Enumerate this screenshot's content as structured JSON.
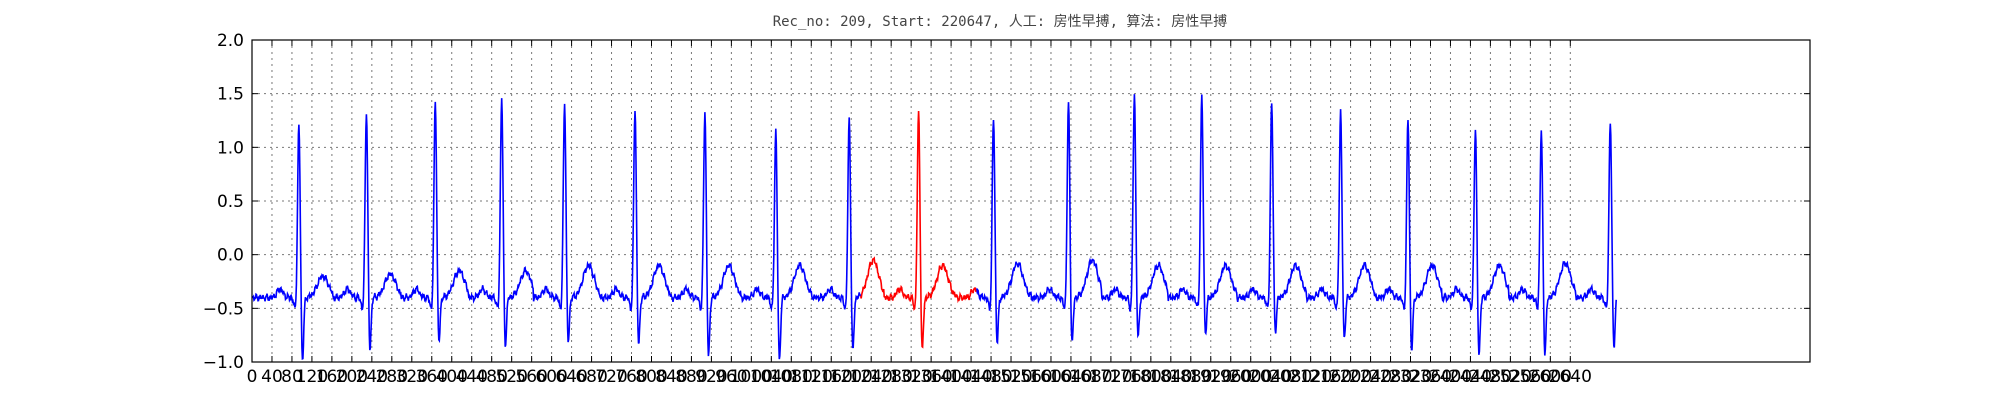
{
  "chart_data": {
    "type": "line",
    "title": "Rec_no: 209, Start: 220647, 人工: 房性早搏, 算法: 房性早搏",
    "xlabel": "",
    "ylabel": "",
    "xlim": [
      0,
      3120
    ],
    "ylim": [
      -1.0,
      2.0
    ],
    "grid": true,
    "y_ticks": [
      2.0,
      1.5,
      1.0,
      0.5,
      0.0,
      -0.5,
      -1.0
    ],
    "y_tick_labels": [
      "2.0",
      "1.5",
      "1.0",
      "0.5",
      "0.0",
      "−0.5",
      "−1.0"
    ],
    "x_ticks": [
      0,
      40,
      80,
      120,
      160,
      200,
      240,
      280,
      320,
      360,
      400,
      440,
      480,
      520,
      560,
      600,
      640,
      680,
      720,
      760,
      800,
      840,
      880,
      920,
      960,
      1000,
      1040,
      1080,
      1120,
      1160,
      1200,
      1240,
      1280,
      1320,
      1360,
      1400,
      1440,
      1480,
      1520,
      1560,
      1600,
      1640,
      1680,
      1720,
      1760,
      1800,
      1840,
      1880,
      1920,
      1960,
      2000,
      2040,
      2080,
      2120,
      2160,
      2200,
      2240,
      2280,
      2320,
      2360,
      2400,
      2440,
      2480,
      2520,
      2560,
      2600,
      2640
    ],
    "x_tick_labels": [
      "0",
      "40",
      "80",
      "120",
      "160",
      "200",
      "240",
      "280",
      "320",
      "360",
      "400",
      "440",
      "480",
      "520",
      "560",
      "600",
      "640",
      "680",
      "720",
      "760",
      "800",
      "840",
      "880",
      "920",
      "960",
      "1000",
      "1040",
      "1080",
      "1120",
      "1160",
      "1200",
      "1240",
      "1280",
      "1320",
      "1360",
      "1400",
      "1440",
      "1480",
      "1520",
      "1560",
      "1600",
      "1640",
      "1680",
      "1720",
      "1760",
      "1800",
      "1840",
      "1880",
      "1920",
      "1960",
      "2000",
      "2040",
      "2080",
      "2120",
      "2160",
      "2200",
      "2240",
      "2280",
      "2320",
      "2360",
      "2400",
      "2440",
      "2480",
      "2520",
      "2560",
      "2600",
      "2640"
    ],
    "series": [
      {
        "color": "#0000ff",
        "baseline": -0.4,
        "beats": [
          {
            "r_x": 94,
            "r_peak": 1.22,
            "s_min": -1.02,
            "t_amp": 0.2
          },
          {
            "r_x": 229,
            "r_peak": 1.35,
            "s_min": -0.92,
            "t_amp": 0.22
          },
          {
            "r_x": 367,
            "r_peak": 1.45,
            "s_min": -0.85,
            "t_amp": 0.25
          },
          {
            "r_x": 500,
            "r_peak": 1.48,
            "s_min": -0.88,
            "t_amp": 0.25
          },
          {
            "r_x": 626,
            "r_peak": 1.43,
            "s_min": -0.85,
            "t_amp": 0.3
          },
          {
            "r_x": 767,
            "r_peak": 1.38,
            "s_min": -0.87,
            "t_amp": 0.3
          },
          {
            "r_x": 907,
            "r_peak": 1.35,
            "s_min": -0.98,
            "t_amp": 0.3
          },
          {
            "r_x": 1049,
            "r_peak": 1.17,
            "s_min": -1.02,
            "t_amp": 0.3
          },
          {
            "r_x": 1196,
            "r_peak": 1.28,
            "s_min": -0.93,
            "t_amp": 0.35
          },
          {
            "r_x": 1485,
            "r_peak": 1.29,
            "s_min": -0.85,
            "t_amp": 0.32
          },
          {
            "r_x": 1635,
            "r_peak": 1.42,
            "s_min": -0.86,
            "t_amp": 0.35
          },
          {
            "r_x": 1767,
            "r_peak": 1.5,
            "s_min": -0.82,
            "t_amp": 0.3
          },
          {
            "r_x": 1902,
            "r_peak": 1.49,
            "s_min": -0.77,
            "t_amp": 0.3
          },
          {
            "r_x": 2042,
            "r_peak": 1.43,
            "s_min": -0.75,
            "t_amp": 0.3
          },
          {
            "r_x": 2180,
            "r_peak": 1.35,
            "s_min": -0.82,
            "t_amp": 0.3
          },
          {
            "r_x": 2315,
            "r_peak": 1.28,
            "s_min": -0.93,
            "t_amp": 0.3
          },
          {
            "r_x": 2450,
            "r_peak": 1.19,
            "s_min": -0.96,
            "t_amp": 0.3
          },
          {
            "r_x": 2582,
            "r_peak": 1.17,
            "s_min": -0.95,
            "t_amp": 0.32
          },
          {
            "r_x": 2720,
            "r_peak": 1.26,
            "s_min": -0.88,
            "t_amp": 0.32
          }
        ]
      },
      {
        "color": "#ff0000",
        "baseline": -0.38,
        "beats": [
          {
            "r_x": 1335,
            "r_peak": 1.34,
            "s_min": -0.93,
            "t_amp": 0.3
          }
        ]
      }
    ]
  }
}
